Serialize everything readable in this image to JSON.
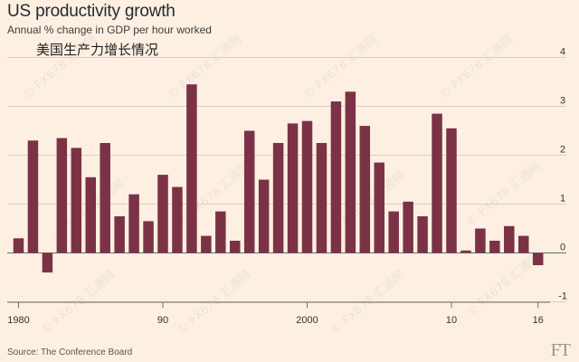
{
  "chart_data": {
    "type": "bar",
    "title": "US productivity growth",
    "subtitle": "Annual % change in GDP per hour worked",
    "subtitle_cn": "美国生产力增长情况",
    "source": "Source: The Conference Board",
    "logo": "FT",
    "x_tick_labels": [
      "1980",
      "90",
      "2000",
      "10",
      "16"
    ],
    "x_tick_years": [
      1980,
      1990,
      2000,
      2010,
      2016
    ],
    "y_ticks": [
      -1,
      0,
      1,
      2,
      3,
      4
    ],
    "ylim": [
      -1,
      4
    ],
    "grid": true,
    "x": [
      1980,
      1981,
      1982,
      1983,
      1984,
      1985,
      1986,
      1987,
      1988,
      1989,
      1990,
      1991,
      1992,
      1993,
      1994,
      1995,
      1996,
      1997,
      1998,
      1999,
      2000,
      2001,
      2002,
      2003,
      2004,
      2005,
      2006,
      2007,
      2008,
      2009,
      2010,
      2011,
      2012,
      2013,
      2014,
      2015,
      2016
    ],
    "values": [
      0.3,
      2.3,
      -0.4,
      2.35,
      2.15,
      1.55,
      2.25,
      0.75,
      1.2,
      0.65,
      1.6,
      1.35,
      3.45,
      0.35,
      0.85,
      0.25,
      2.5,
      1.5,
      2.25,
      2.65,
      2.7,
      2.25,
      3.1,
      3.3,
      2.6,
      1.85,
      0.85,
      1.05,
      0.75,
      2.85,
      2.55,
      0.05,
      0.5,
      0.25,
      0.55,
      0.35,
      -0.25
    ],
    "bar_color": "#7b3247"
  },
  "watermark": "© FX678 汇通网"
}
